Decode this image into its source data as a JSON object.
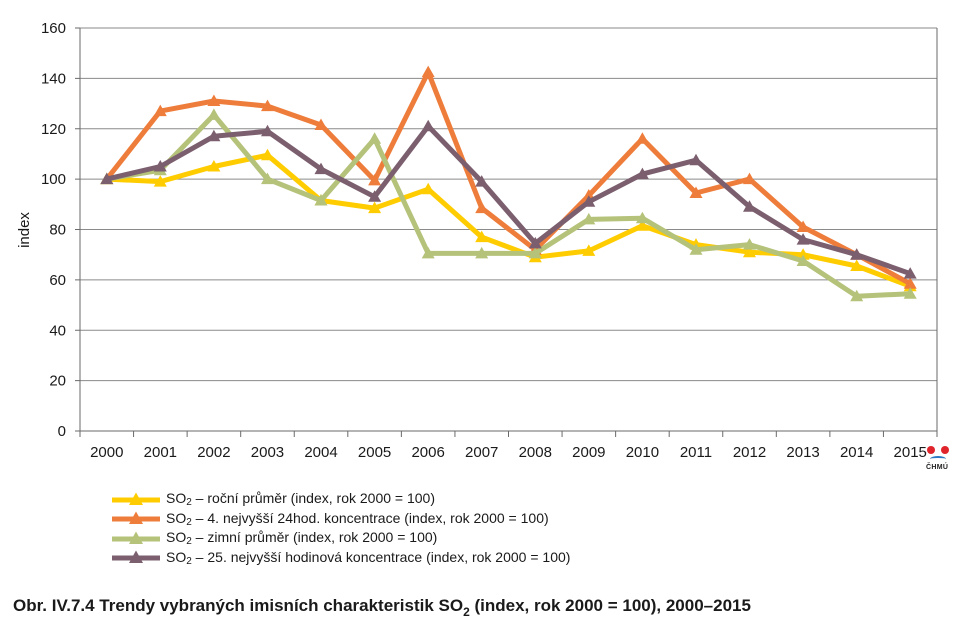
{
  "chart_data": {
    "type": "line",
    "ylabel": "index",
    "xlabel": "",
    "ylim": [
      0,
      160
    ],
    "yticks": [
      "0",
      "20",
      "40",
      "60",
      "80",
      "100",
      "120",
      "140",
      "160"
    ],
    "ytick_values": [
      0,
      20,
      40,
      60,
      80,
      100,
      120,
      140,
      160
    ],
    "categories": [
      "2000",
      "2001",
      "2002",
      "2003",
      "2004",
      "2005",
      "2006",
      "2007",
      "2008",
      "2009",
      "2010",
      "2011",
      "2012",
      "2013",
      "2014",
      "2015"
    ],
    "grid": true,
    "legend_position": "bottom-left",
    "series": [
      {
        "name": "roční průměr (index, rok 2000 = 100)",
        "color": "#ffcc00",
        "values": [
          100,
          99,
          105,
          109.5,
          91.5,
          88.5,
          96,
          77,
          69,
          71.5,
          81.5,
          74,
          71,
          70,
          65.5,
          57.5
        ]
      },
      {
        "name": "4. nejvyšší 24hod. koncentrace (index, rok 2000 = 100)",
        "color": "#ee7d3b",
        "values": [
          100,
          127,
          131,
          129,
          121.5,
          99.5,
          142.5,
          88.5,
          72,
          93.5,
          116,
          94.5,
          100,
          81,
          70,
          58.5
        ]
      },
      {
        "name": "zimní průměr (index, rok 2000 = 100)",
        "color": "#b4c27a",
        "values": [
          100,
          103.5,
          125.5,
          100,
          91.5,
          116,
          70.5,
          70.5,
          70.5,
          84,
          84.5,
          72,
          74,
          67.5,
          53.5,
          54.5
        ]
      },
      {
        "name": "25. nejvyšší hodinová koncentrace (index, rok 2000 = 100)",
        "color": "#7b5f6e",
        "values": [
          100,
          105,
          117,
          119,
          104,
          93,
          121,
          99,
          74.5,
          91,
          102,
          107.5,
          89,
          76,
          70,
          62.5
        ]
      }
    ]
  },
  "legend": {
    "prefix": "SO",
    "sub": "2",
    "dash": " – "
  },
  "caption": {
    "part1": "Obr. IV.7.4  Trendy vybraných imisních charakteristik SO",
    "sub": "2",
    "part2": " (index, rok 2000 = 100), 2000–2015"
  },
  "logo": {
    "text": "ČHMÚ",
    "icon": "chmu-logo-icon"
  }
}
